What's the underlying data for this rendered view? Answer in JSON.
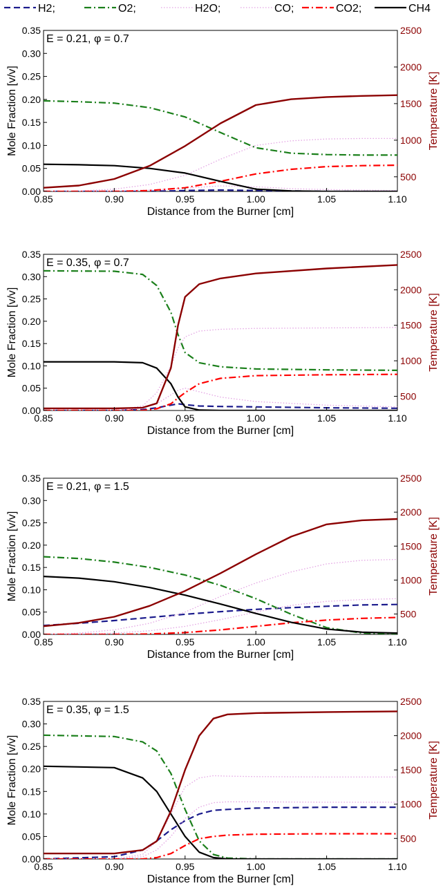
{
  "legend": [
    {
      "label": "H2;",
      "color": "#1a1a8c",
      "dash": "dash"
    },
    {
      "label": "O2;",
      "color": "#1a7f1a",
      "dash": "dashdot"
    },
    {
      "label": "H2O;",
      "color": "#e3a3e3",
      "dash": "dot"
    },
    {
      "label": "CO;",
      "color": "#e3a3e3",
      "dash": "dot"
    },
    {
      "label": "CO2;",
      "color": "#ff0000",
      "dash": "dashdot"
    },
    {
      "label": "CH4",
      "color": "#000000",
      "dash": "solid"
    }
  ],
  "colors": {
    "temperature": "#8b0000",
    "right_axis_text": "#8b0000"
  },
  "chart_data": [
    {
      "type": "line",
      "title": "E = 0.21, φ = 0.7",
      "xlabel": "Distance from the Burner [cm]",
      "ylabel": "Mole Fraction [v/v]",
      "y2label": "Temperature [K]",
      "xlim": [
        0.85,
        1.1
      ],
      "ylim": [
        0,
        0.35
      ],
      "y2lim": [
        300,
        2500
      ],
      "xticks": [
        "0.85",
        "0.90",
        "0.95",
        "1.00",
        "1.05",
        "1.10"
      ],
      "yticks": [
        "0.00",
        "0.05",
        "0.10",
        "0.15",
        "0.20",
        "0.25",
        "0.30",
        "0.35"
      ],
      "y2ticks": [
        "500",
        "1000",
        "1500",
        "2000",
        "2500"
      ],
      "x": [
        0.85,
        0.875,
        0.9,
        0.925,
        0.95,
        0.975,
        1.0,
        1.025,
        1.05,
        1.075,
        1.1
      ],
      "series": [
        {
          "name": "H2",
          "values": [
            0.0,
            0.0,
            0.0,
            0.0,
            0.002,
            0.003,
            0.002,
            0.001,
            0.0,
            0.0,
            0.0
          ]
        },
        {
          "name": "O2",
          "values": [
            0.197,
            0.195,
            0.192,
            0.182,
            0.162,
            0.128,
            0.095,
            0.083,
            0.08,
            0.079,
            0.079
          ]
        },
        {
          "name": "H2O",
          "values": [
            0.0,
            0.001,
            0.005,
            0.015,
            0.035,
            0.07,
            0.1,
            0.11,
            0.114,
            0.115,
            0.115
          ]
        },
        {
          "name": "CO",
          "values": [
            0.0,
            0.0,
            0.001,
            0.003,
            0.007,
            0.012,
            0.01,
            0.006,
            0.004,
            0.003,
            0.002
          ]
        },
        {
          "name": "CO2",
          "values": [
            0.0,
            0.0,
            0.0,
            0.002,
            0.008,
            0.022,
            0.038,
            0.048,
            0.054,
            0.056,
            0.057
          ]
        },
        {
          "name": "CH4",
          "values": [
            0.059,
            0.058,
            0.056,
            0.05,
            0.04,
            0.022,
            0.005,
            0.001,
            0.0,
            0.0,
            0.0
          ]
        },
        {
          "name": "Temperature",
          "axis": "right",
          "values": [
            350,
            380,
            470,
            650,
            920,
            1230,
            1480,
            1560,
            1590,
            1605,
            1615
          ]
        }
      ]
    },
    {
      "type": "line",
      "title": "E = 0.35, φ = 0.7",
      "xlabel": "Distance from the Burner [cm]",
      "ylabel": "Mole Fraction [v/v]",
      "y2label": "Temperature [K]",
      "xlim": [
        0.85,
        1.1
      ],
      "ylim": [
        0,
        0.35
      ],
      "y2lim": [
        300,
        2500
      ],
      "xticks": [
        "0.85",
        "0.90",
        "0.95",
        "1.00",
        "1.05",
        "1.10"
      ],
      "yticks": [
        "0.00",
        "0.05",
        "0.10",
        "0.15",
        "0.20",
        "0.25",
        "0.30",
        "0.35"
      ],
      "y2ticks": [
        "500",
        "1000",
        "1500",
        "2000",
        "2500"
      ],
      "x": [
        0.85,
        0.9,
        0.92,
        0.93,
        0.94,
        0.945,
        0.95,
        0.96,
        0.975,
        1.0,
        1.05,
        1.1
      ],
      "series": [
        {
          "name": "H2",
          "values": [
            0.0,
            0.0,
            0.002,
            0.006,
            0.012,
            0.015,
            0.013,
            0.01,
            0.009,
            0.008,
            0.006,
            0.005
          ]
        },
        {
          "name": "O2",
          "values": [
            0.313,
            0.312,
            0.305,
            0.28,
            0.22,
            0.17,
            0.13,
            0.107,
            0.098,
            0.093,
            0.091,
            0.09
          ]
        },
        {
          "name": "H2O",
          "values": [
            0.0,
            0.0,
            0.01,
            0.04,
            0.1,
            0.14,
            0.165,
            0.178,
            0.182,
            0.184,
            0.185,
            0.186
          ]
        },
        {
          "name": "CO",
          "values": [
            0.0,
            0.0,
            0.005,
            0.015,
            0.035,
            0.045,
            0.05,
            0.042,
            0.03,
            0.02,
            0.012,
            0.008
          ]
        },
        {
          "name": "CO2",
          "values": [
            0.0,
            0.0,
            0.0,
            0.004,
            0.015,
            0.028,
            0.04,
            0.06,
            0.072,
            0.078,
            0.08,
            0.081
          ]
        },
        {
          "name": "CH4",
          "values": [
            0.109,
            0.109,
            0.107,
            0.095,
            0.06,
            0.03,
            0.008,
            0.001,
            0.0,
            0.0,
            0.0,
            0.0
          ]
        },
        {
          "name": "Temperature",
          "axis": "right",
          "values": [
            330,
            330,
            340,
            400,
            900,
            1500,
            1900,
            2080,
            2160,
            2230,
            2300,
            2350
          ]
        }
      ]
    },
    {
      "type": "line",
      "title": "E = 0.21, φ = 1.5",
      "xlabel": "Distance from the Burner [cm]",
      "ylabel": "Mole Fraction [v/v]",
      "y2label": "Temperature [K]",
      "xlim": [
        0.85,
        1.1
      ],
      "ylim": [
        0,
        0.35
      ],
      "y2lim": [
        200,
        2500
      ],
      "xticks": [
        "0.85",
        "0.90",
        "0.95",
        "1.00",
        "1.05",
        "1.10"
      ],
      "yticks": [
        "0.00",
        "0.05",
        "0.10",
        "0.15",
        "0.20",
        "0.25",
        "0.30",
        "0.35"
      ],
      "y2ticks": [
        "500",
        "1000",
        "1500",
        "2000",
        "2500"
      ],
      "x": [
        0.85,
        0.875,
        0.9,
        0.925,
        0.95,
        0.975,
        1.0,
        1.025,
        1.05,
        1.075,
        1.1
      ],
      "series": [
        {
          "name": "H2",
          "values": [
            0.02,
            0.025,
            0.031,
            0.038,
            0.045,
            0.051,
            0.056,
            0.06,
            0.063,
            0.066,
            0.067
          ]
        },
        {
          "name": "O2",
          "values": [
            0.174,
            0.17,
            0.162,
            0.15,
            0.133,
            0.11,
            0.08,
            0.045,
            0.015,
            0.003,
            0.001
          ]
        },
        {
          "name": "H2O",
          "values": [
            0.0,
            0.003,
            0.01,
            0.025,
            0.05,
            0.085,
            0.115,
            0.14,
            0.158,
            0.166,
            0.168
          ]
        },
        {
          "name": "CO",
          "values": [
            0.0,
            0.001,
            0.003,
            0.008,
            0.018,
            0.033,
            0.05,
            0.065,
            0.074,
            0.078,
            0.08
          ]
        },
        {
          "name": "CO2",
          "values": [
            0.0,
            0.0,
            0.0,
            0.001,
            0.004,
            0.01,
            0.018,
            0.026,
            0.032,
            0.036,
            0.038
          ]
        },
        {
          "name": "CH4",
          "values": [
            0.13,
            0.126,
            0.118,
            0.105,
            0.088,
            0.068,
            0.047,
            0.027,
            0.012,
            0.005,
            0.003
          ]
        },
        {
          "name": "Temperature",
          "axis": "right",
          "values": [
            320,
            370,
            460,
            620,
            840,
            1100,
            1380,
            1640,
            1820,
            1880,
            1900
          ]
        }
      ]
    },
    {
      "type": "line",
      "title": "E = 0.35, φ = 1.5",
      "xlabel": "Distance from the Burner [cm]",
      "ylabel": "Mole Fraction [v/v]",
      "y2label": "Temperature [K]",
      "xlim": [
        0.85,
        1.1
      ],
      "ylim": [
        0,
        0.35
      ],
      "y2lim": [
        200,
        2500
      ],
      "xticks": [
        "0.85",
        "0.90",
        "0.95",
        "1.00",
        "1.05",
        "1.10"
      ],
      "yticks": [
        "0.00",
        "0.05",
        "0.10",
        "0.15",
        "0.20",
        "0.25",
        "0.30",
        "0.35"
      ],
      "y2ticks": [
        "500",
        "1000",
        "1500",
        "2000",
        "2500"
      ],
      "x": [
        0.85,
        0.9,
        0.92,
        0.93,
        0.94,
        0.95,
        0.96,
        0.97,
        0.98,
        1.0,
        1.05,
        1.1
      ],
      "series": [
        {
          "name": "H2",
          "values": [
            0.0,
            0.005,
            0.02,
            0.04,
            0.065,
            0.085,
            0.1,
            0.108,
            0.11,
            0.113,
            0.115,
            0.115
          ]
        },
        {
          "name": "O2",
          "values": [
            0.275,
            0.272,
            0.26,
            0.24,
            0.19,
            0.11,
            0.04,
            0.01,
            0.002,
            0.0,
            0.0,
            0.0
          ]
        },
        {
          "name": "H2O",
          "values": [
            0.0,
            0.0,
            0.01,
            0.04,
            0.1,
            0.16,
            0.18,
            0.185,
            0.184,
            0.183,
            0.182,
            0.182
          ]
        },
        {
          "name": "CO",
          "values": [
            0.0,
            0.0,
            0.005,
            0.02,
            0.05,
            0.09,
            0.115,
            0.125,
            0.127,
            0.127,
            0.126,
            0.126
          ]
        },
        {
          "name": "CO2",
          "values": [
            0.0,
            0.0,
            0.0,
            0.003,
            0.012,
            0.03,
            0.045,
            0.05,
            0.053,
            0.055,
            0.056,
            0.056
          ]
        },
        {
          "name": "CH4",
          "values": [
            0.206,
            0.203,
            0.18,
            0.15,
            0.1,
            0.05,
            0.015,
            0.003,
            0.0,
            0.0,
            0.0,
            0.0
          ]
        },
        {
          "name": "Temperature",
          "axis": "right",
          "values": [
            280,
            280,
            330,
            460,
            900,
            1500,
            2000,
            2250,
            2310,
            2330,
            2345,
            2355
          ]
        }
      ]
    }
  ]
}
